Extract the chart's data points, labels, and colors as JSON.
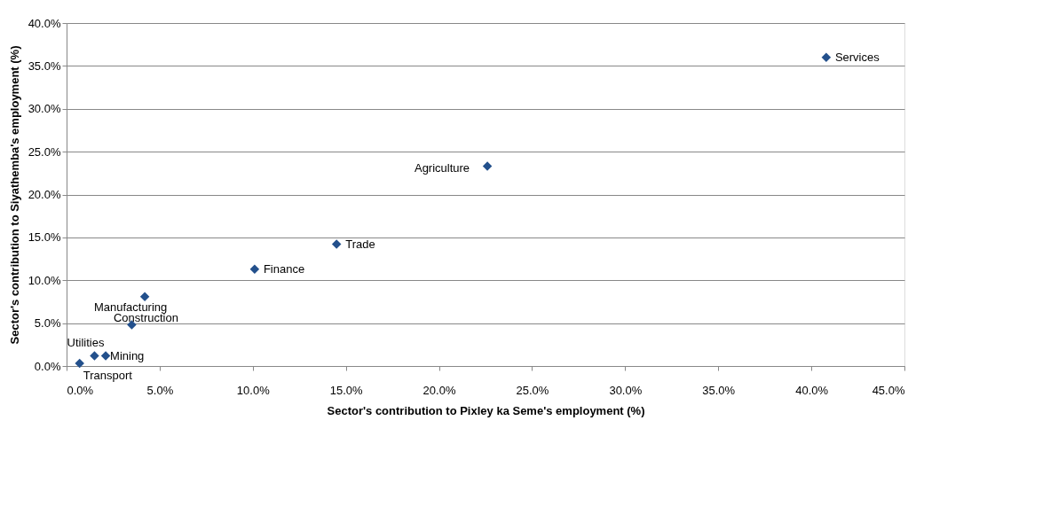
{
  "chart_data": {
    "type": "scatter",
    "xlabel": "Sector's contribution to Pixley ka Seme's employment (%)",
    "ylabel": "Sector's contribution to Siyathemba's employment (%)",
    "x": [
      40.8,
      22.6,
      14.5,
      10.1,
      4.2,
      3.5,
      2.1,
      1.5,
      0.7
    ],
    "series": [
      {
        "color": "#23508c",
        "values": [
          36.0,
          23.3,
          14.2,
          11.3,
          8.1,
          4.8,
          1.2,
          1.2,
          0.3
        ]
      }
    ],
    "annotations": [
      {
        "text": "Services",
        "x": 40.8,
        "y": 36.0
      },
      {
        "text": "Agriculture",
        "x": 22.6,
        "y": 23.3
      },
      {
        "text": "Trade",
        "x": 14.5,
        "y": 14.2
      },
      {
        "text": "Finance",
        "x": 10.1,
        "y": 11.3
      },
      {
        "text": "Manufacturing",
        "x": 4.2,
        "y": 8.1
      },
      {
        "text": "Construction",
        "x": 3.5,
        "y": 4.8
      },
      {
        "text": "Mining",
        "x": 2.1,
        "y": 1.2
      },
      {
        "text": "Utilities",
        "x": 1.5,
        "y": 1.2
      },
      {
        "text": "Transport",
        "x": 0.7,
        "y": 0.3
      }
    ],
    "xlim": [
      0,
      45
    ],
    "ylim": [
      0,
      40
    ],
    "xticks": [
      {
        "value": 0,
        "label": "0.0%"
      },
      {
        "value": 5,
        "label": "5.0%"
      },
      {
        "value": 10,
        "label": "10.0%"
      },
      {
        "value": 15,
        "label": "15.0%"
      },
      {
        "value": 20,
        "label": "20.0%"
      },
      {
        "value": 25,
        "label": "25.0%"
      },
      {
        "value": 30,
        "label": "30.0%"
      },
      {
        "value": 35,
        "label": "35.0%"
      },
      {
        "value": 40,
        "label": "40.0%"
      },
      {
        "value": 45,
        "label": "45.0%"
      }
    ],
    "yticks": [
      {
        "value": 0,
        "label": "0.0%"
      },
      {
        "value": 5,
        "label": "5.0%"
      },
      {
        "value": 10,
        "label": "10.0%"
      },
      {
        "value": 15,
        "label": "15.0%"
      },
      {
        "value": 20,
        "label": "20.0%"
      },
      {
        "value": 25,
        "label": "25.0%"
      },
      {
        "value": 30,
        "label": "30.0%"
      },
      {
        "value": 35,
        "label": "35.0%"
      },
      {
        "value": 40,
        "label": "40.0%"
      }
    ],
    "grid": "y",
    "marker": "diamond"
  }
}
